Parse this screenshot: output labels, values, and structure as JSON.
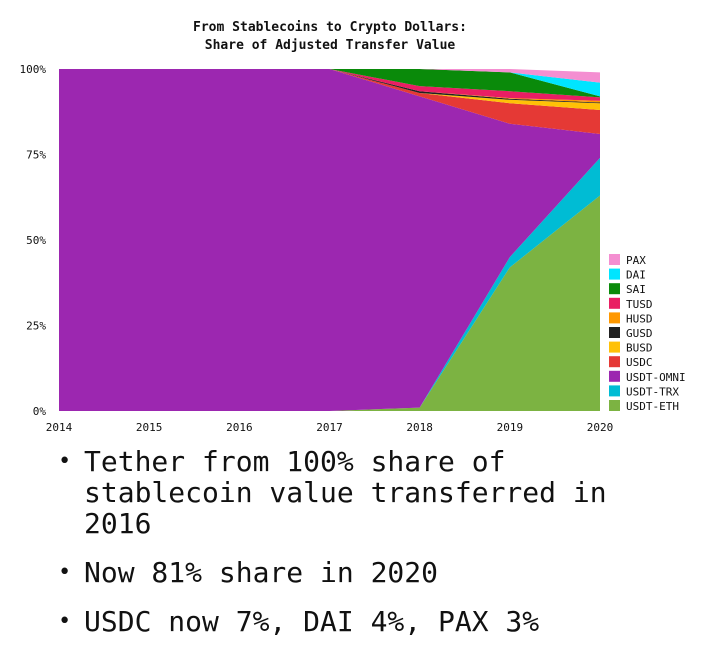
{
  "chart_data": {
    "type": "area",
    "stacked": true,
    "normalized": true,
    "title": [
      "From Stablecoins to Crypto Dollars:",
      "Share of Adjusted Transfer Value"
    ],
    "xlabel": "",
    "ylabel": "",
    "x": [
      2014,
      2015,
      2016,
      2017,
      2018,
      2019,
      2020
    ],
    "x_ticks": [
      "2014",
      "2015",
      "2016",
      "2017",
      "2018",
      "2019",
      "2020"
    ],
    "y_ticks": [
      "0%",
      "25%",
      "50%",
      "75%",
      "100%"
    ],
    "ylim": [
      0,
      100
    ],
    "legend_position": "right",
    "series": [
      {
        "name": "USDT-ETH",
        "color": "#7cb342",
        "values": [
          0,
          0,
          0,
          0,
          1,
          42,
          63
        ]
      },
      {
        "name": "USDT-TRX",
        "color": "#00bcd4",
        "values": [
          0,
          0,
          0,
          0,
          0,
          3,
          11
        ]
      },
      {
        "name": "USDT-OMNI",
        "color": "#9c27b0",
        "values": [
          100,
          100,
          100,
          100,
          91,
          39,
          7
        ]
      },
      {
        "name": "USDC",
        "color": "#e53935",
        "values": [
          0,
          0,
          0,
          0,
          1,
          6,
          7
        ]
      },
      {
        "name": "BUSD",
        "color": "#ffc107",
        "values": [
          0,
          0,
          0,
          0,
          0,
          1,
          2
        ]
      },
      {
        "name": "GUSD",
        "color": "#212121",
        "values": [
          0,
          0,
          0,
          0,
          0.5,
          0.3,
          0.2
        ]
      },
      {
        "name": "HUSD",
        "color": "#ff9800",
        "values": [
          0,
          0,
          0,
          0,
          0,
          0.2,
          0.5
        ]
      },
      {
        "name": "TUSD",
        "color": "#e91e63",
        "values": [
          0,
          0,
          0,
          0,
          1.5,
          2,
          1
        ]
      },
      {
        "name": "SAI",
        "color": "#0a8a0a",
        "values": [
          0,
          0,
          0,
          0,
          5,
          5.5,
          0.3
        ]
      },
      {
        "name": "DAI",
        "color": "#00e5ff",
        "values": [
          0,
          0,
          0,
          0,
          0,
          0,
          4
        ]
      },
      {
        "name": "PAX",
        "color": "#f48fd1",
        "values": [
          0,
          0,
          0,
          0,
          0,
          1,
          3
        ]
      }
    ]
  },
  "bullets": [
    "Tether from 100% share of stablecoin value transferred in 2016",
    "Now 81% share in 2020",
    "USDC now 7%, DAI 4%, PAX 3%"
  ]
}
